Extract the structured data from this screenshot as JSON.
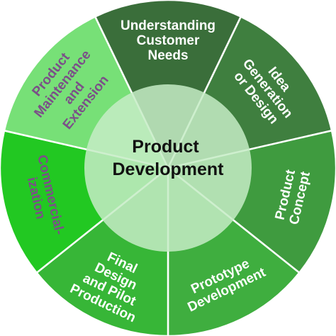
{
  "diagram": {
    "center": {
      "lines": [
        "Product",
        "Development"
      ],
      "fill": "#c6ecc6"
    },
    "segments": [
      {
        "id": "understanding",
        "lines": [
          "Understanding",
          "Customer",
          "Needs"
        ],
        "fill": "#3a6e3a",
        "text_color": "#ffffff"
      },
      {
        "id": "idea",
        "lines": [
          "Idea",
          "Generation",
          "or Design"
        ],
        "fill": "#3f7f3f",
        "text_color": "#ffffff"
      },
      {
        "id": "concept",
        "lines": [
          "Product",
          "Concept"
        ],
        "fill": "#3f9b3f",
        "text_color": "#ffffff"
      },
      {
        "id": "prototype",
        "lines": [
          "Prototype",
          "Development"
        ],
        "fill": "#3fae3f",
        "text_color": "#ffffff"
      },
      {
        "id": "final",
        "lines": [
          "Final",
          "Design",
          "and Pilot",
          "Production"
        ],
        "fill": "#37b637",
        "text_color": "#ffffff"
      },
      {
        "id": "commercial",
        "lines": [
          "Commercial-",
          "ization"
        ],
        "fill": "#22c822",
        "text_color": "#7b4f88"
      },
      {
        "id": "maintenance",
        "lines": [
          "Product",
          "Maintenance",
          "and",
          "Extension"
        ],
        "fill": "#77e077",
        "text_color": "#7b4f88"
      }
    ]
  }
}
